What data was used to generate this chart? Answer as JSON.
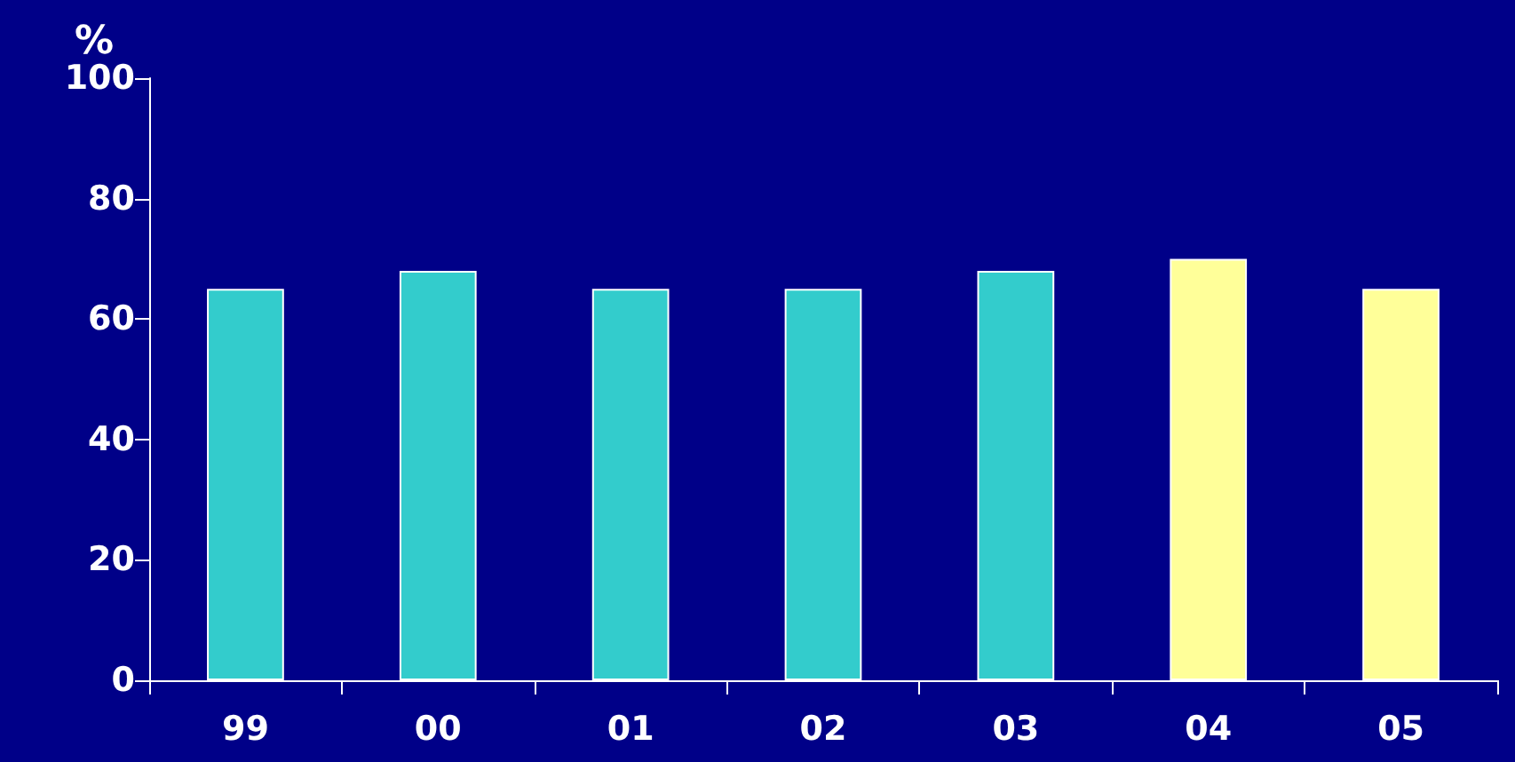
{
  "chart_data": {
    "type": "bar",
    "ylabel": "%",
    "categories": [
      "99",
      "00",
      "01",
      "02",
      "03",
      "04",
      "05"
    ],
    "values": [
      65,
      68,
      65,
      65,
      68,
      70,
      65
    ],
    "colors": [
      "#33cccc",
      "#33cccc",
      "#33cccc",
      "#33cccc",
      "#33cccc",
      "#ffff99",
      "#ffff99"
    ],
    "ylim": [
      0,
      100
    ],
    "yticks": [
      0,
      20,
      40,
      60,
      80,
      100
    ],
    "grid": false
  }
}
